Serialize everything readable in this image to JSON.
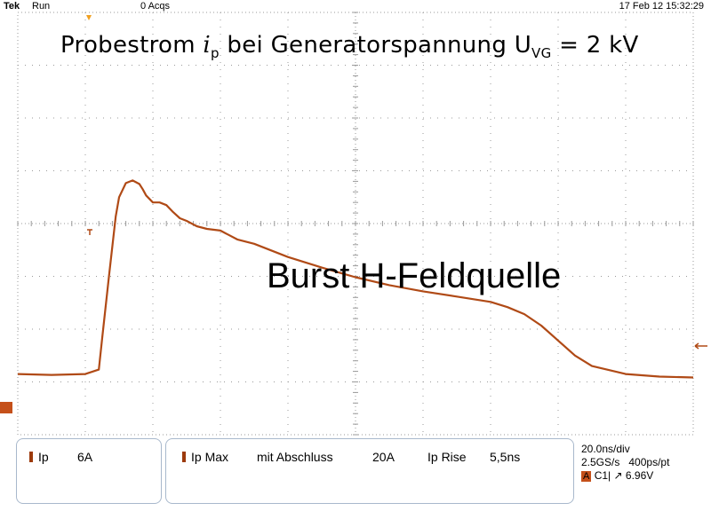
{
  "status_bar": {
    "brand": "Tek",
    "mode": "Run",
    "acquisitions": "0 Acqs",
    "datetime": "17 Feb 12 15:32:29"
  },
  "annotations": {
    "title_prefix": "Probestrom ",
    "title_symbol": "i",
    "title_symbol_sub": "p",
    "title_middle": " bei Generatorspannung U",
    "title_voltage_sub": "VG",
    "title_suffix": " = 2 kV",
    "label": "Burst H-Feldquelle"
  },
  "scale": {
    "time_per_div_ns": 20,
    "current_per_div_A": 6
  },
  "chart_data": {
    "type": "line",
    "title": "Probestrom ip bei Generatorspannung UVG = 2 kV",
    "xlabel": "",
    "ylabel": "",
    "xlim": [
      0,
      200
    ],
    "ylim": [
      -24,
      24
    ],
    "grid": true,
    "series": [
      {
        "color": "#b04a16",
        "x": [
          0,
          10,
          20,
          24,
          25,
          27,
          29,
          30,
          32,
          34,
          36,
          37,
          38,
          40,
          42,
          44,
          46,
          48,
          50,
          53,
          56,
          60,
          65,
          70,
          80,
          90,
          100,
          110,
          120,
          130,
          140,
          145,
          150,
          155,
          160,
          165,
          170,
          180,
          190,
          200
        ],
        "y": [
          -17.1,
          -17.2,
          -17.1,
          -16.6,
          -13.0,
          -6.0,
          0.8,
          3.0,
          4.6,
          4.9,
          4.5,
          3.9,
          3.2,
          2.4,
          2.4,
          2.1,
          1.3,
          0.6,
          0.3,
          -0.3,
          -0.6,
          -0.8,
          -1.8,
          -2.3,
          -3.8,
          -5.0,
          -6.1,
          -7.0,
          -7.7,
          -8.3,
          -8.9,
          -9.5,
          -10.3,
          -11.6,
          -13.3,
          -15.0,
          -16.2,
          -17.1,
          -17.4,
          -17.5
        ]
      }
    ]
  },
  "panels": {
    "ch1": {
      "name": "Ip",
      "value": "6A"
    },
    "meas": {
      "name": "Ip Max",
      "note": "mit Abschluss",
      "max": "20A",
      "rise_name": "Ip Rise",
      "rise": "5,5ns"
    },
    "timebase": {
      "horizontal": "20.0ns/div",
      "rate": "2.5GS/s",
      "resolution": "400ps/pt",
      "channel": "A",
      "source": "C1",
      "trigger_symbol": "↗",
      "trigger_level": "6.96V"
    }
  },
  "colors": {
    "trace": "#b04a16",
    "grid": "#9a9a9a",
    "panel_border": "#a8b8cc",
    "marker": "#9c3a0b",
    "trigger": "#f0a020"
  }
}
